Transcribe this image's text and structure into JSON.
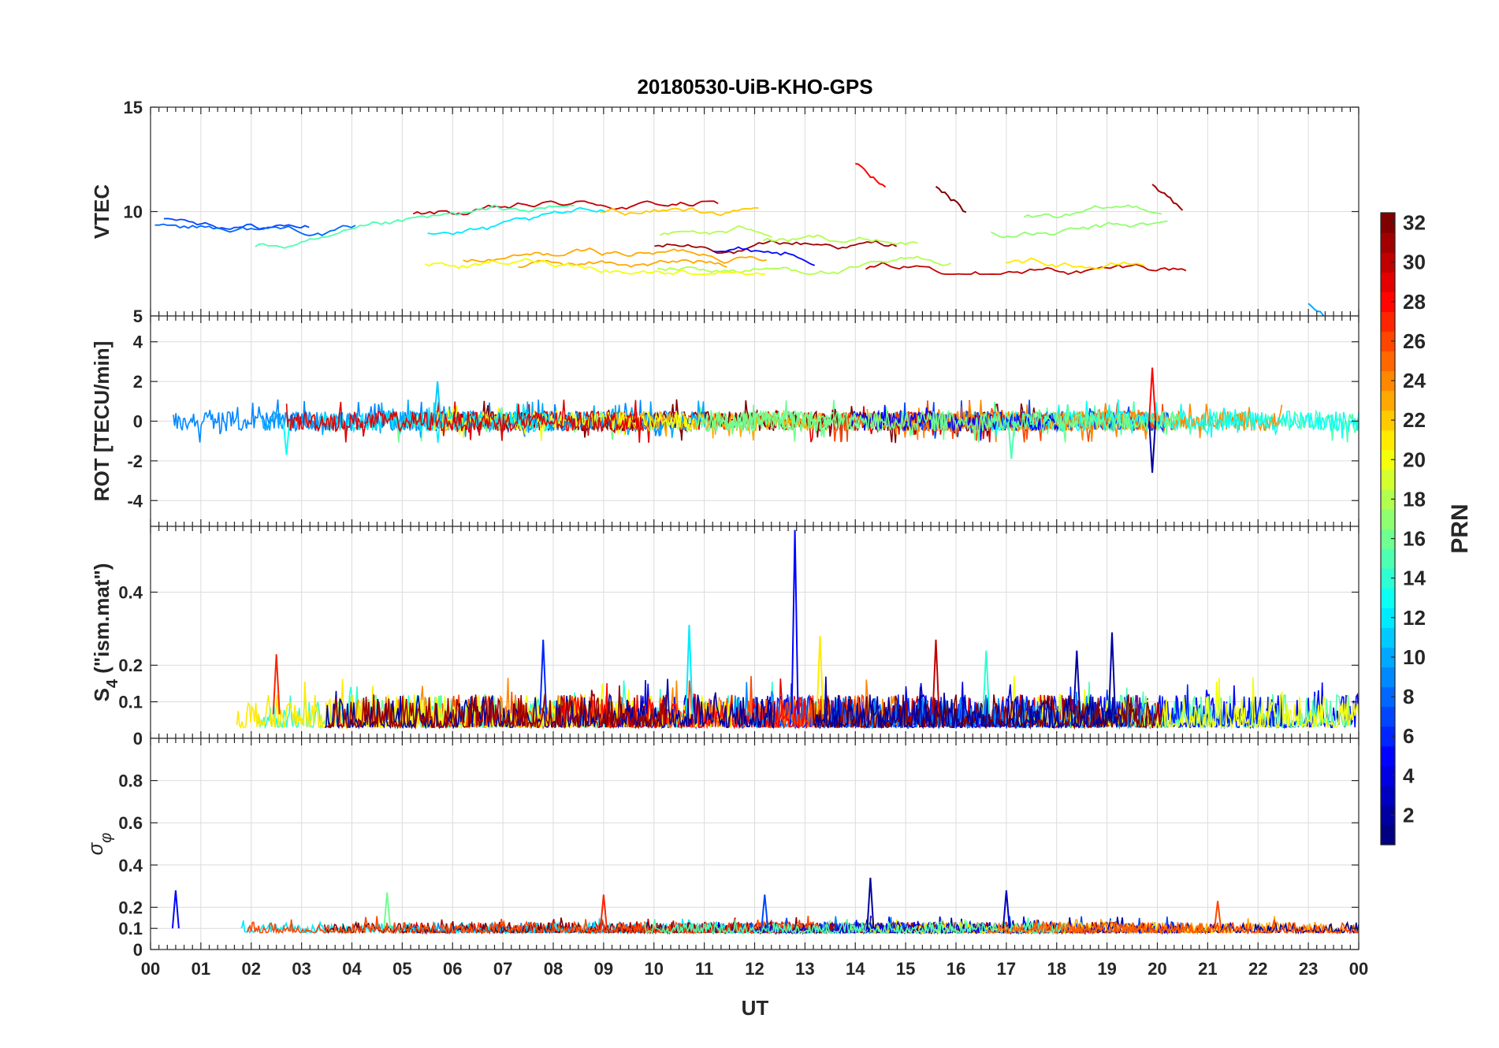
{
  "chart_data": {
    "type": "line",
    "title": "20180530-UiB-KHO-GPS",
    "xlabel": "UT",
    "x_ticks": [
      "00",
      "01",
      "02",
      "03",
      "04",
      "05",
      "06",
      "07",
      "08",
      "09",
      "10",
      "11",
      "12",
      "13",
      "14",
      "15",
      "16",
      "17",
      "18",
      "19",
      "20",
      "21",
      "22",
      "23",
      "00"
    ],
    "xlim_hours": [
      0,
      24
    ],
    "grid": true,
    "colorbar": {
      "label": "PRN",
      "colormap": "jet",
      "range": [
        1,
        32
      ],
      "ticks": [
        "2",
        "4",
        "6",
        "8",
        "10",
        "12",
        "14",
        "16",
        "18",
        "20",
        "22",
        "24",
        "26",
        "28",
        "30",
        "32"
      ]
    },
    "panels": [
      {
        "id": "vtec",
        "ylabel": "VTEC",
        "ylim": [
          5,
          15
        ],
        "y_ticks": [
          5,
          10,
          15
        ],
        "y_tick_labels": [
          "5",
          "10",
          "15"
        ],
        "typical_range": [
          7,
          10.5
        ],
        "notable": [
          {
            "hour": 14.0,
            "value": 12.3
          },
          {
            "hour": 15.6,
            "value": 11.2
          },
          {
            "hour": 19.9,
            "value": 11.3
          },
          {
            "hour": 23.0,
            "value": 5.6
          }
        ]
      },
      {
        "id": "rot",
        "ylabel": "ROT [TECU/min]",
        "ylim": [
          -5.3,
          5.3
        ],
        "y_ticks": [
          -4,
          -2,
          0,
          2,
          4
        ],
        "y_tick_labels": [
          "-4",
          "-2",
          "0",
          "2",
          "4"
        ],
        "typical_range": [
          -0.5,
          0.5
        ],
        "notable": [
          {
            "hour": 19.9,
            "value": 2.7
          },
          {
            "hour": 19.9,
            "value": -2.6
          },
          {
            "hour": 5.7,
            "value": 2.0
          },
          {
            "hour": 17.1,
            "value": -1.9
          },
          {
            "hour": 2.7,
            "value": -1.7
          }
        ]
      },
      {
        "id": "s4",
        "ylabel_main": "S",
        "ylabel_sub": "4",
        "ylabel_rest": " (\"ism.mat\")",
        "ylim": [
          0,
          0.58
        ],
        "y_ticks": [
          0,
          0.1,
          0.2,
          0.4
        ],
        "y_tick_labels": [
          "0",
          "0.1",
          "0.2",
          "0.4"
        ],
        "typical_range": [
          0.03,
          0.12
        ],
        "notable": [
          {
            "hour": 12.8,
            "value": 0.57
          },
          {
            "hour": 10.7,
            "value": 0.31
          },
          {
            "hour": 19.1,
            "value": 0.29
          },
          {
            "hour": 13.3,
            "value": 0.28
          },
          {
            "hour": 7.8,
            "value": 0.27
          },
          {
            "hour": 15.6,
            "value": 0.27
          },
          {
            "hour": 18.4,
            "value": 0.24
          },
          {
            "hour": 16.6,
            "value": 0.24
          },
          {
            "hour": 2.5,
            "value": 0.23
          }
        ]
      },
      {
        "id": "sigma",
        "ylabel_main": "σ",
        "ylabel_sub": "φ",
        "ylim": [
          0,
          1
        ],
        "y_ticks": [
          0,
          0.1,
          0.2,
          0.4,
          0.6,
          0.8
        ],
        "y_tick_labels": [
          "0",
          "0.1",
          "0.2",
          "0.4",
          "0.6",
          "0.8"
        ],
        "typical_range": [
          0.08,
          0.13
        ],
        "notable": [
          {
            "hour": 0.5,
            "value": 0.28
          },
          {
            "hour": 4.7,
            "value": 0.27
          },
          {
            "hour": 9.0,
            "value": 0.26
          },
          {
            "hour": 12.2,
            "value": 0.26
          },
          {
            "hour": 14.3,
            "value": 0.34
          },
          {
            "hour": 17.0,
            "value": 0.28
          },
          {
            "hour": 21.2,
            "value": 0.23
          }
        ]
      }
    ]
  }
}
